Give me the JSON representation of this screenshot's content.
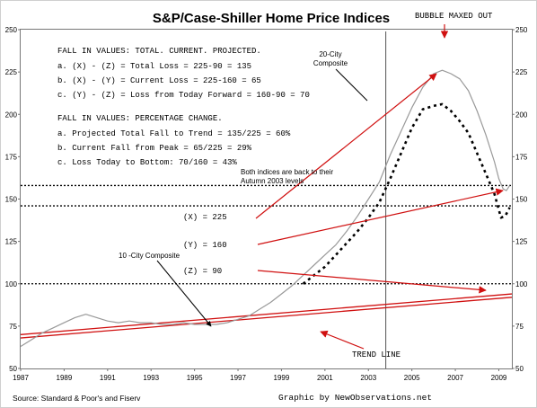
{
  "chart_data": {
    "type": "line",
    "title": "S&P/Case-Shiller Home Price Indices",
    "source": "Source: Standard & Poor's and Fiserv",
    "credit": "Graphic by NewObservations.net",
    "xlim": [
      1987,
      2009.6
    ],
    "ylim": [
      50,
      250
    ],
    "x_ticks": [
      "1987",
      "1989",
      "1991",
      "1993",
      "1995",
      "1997",
      "1999",
      "2001",
      "2003",
      "2005",
      "2007",
      "2009"
    ],
    "y_ticks": [
      "50",
      "75",
      "100",
      "125",
      "150",
      "175",
      "200",
      "225",
      "250"
    ],
    "series": [
      {
        "name": "10-City Composite",
        "style": "solid",
        "color": "#999999",
        "points": [
          [
            1987.0,
            63
          ],
          [
            1987.5,
            67
          ],
          [
            1988.0,
            71
          ],
          [
            1988.5,
            74
          ],
          [
            1989.0,
            77
          ],
          [
            1989.5,
            80
          ],
          [
            1990.0,
            82
          ],
          [
            1990.5,
            80
          ],
          [
            1991.0,
            78
          ],
          [
            1991.5,
            77
          ],
          [
            1992.0,
            78
          ],
          [
            1992.5,
            77
          ],
          [
            1993.0,
            77
          ],
          [
            1993.5,
            76
          ],
          [
            1994.0,
            76
          ],
          [
            1994.5,
            77
          ],
          [
            1995.0,
            76
          ],
          [
            1995.5,
            76
          ],
          [
            1996.0,
            76
          ],
          [
            1996.5,
            77
          ],
          [
            1997.0,
            79
          ],
          [
            1997.5,
            81
          ],
          [
            1998.0,
            85
          ],
          [
            1998.5,
            89
          ],
          [
            1999.0,
            94
          ],
          [
            1999.5,
            99
          ],
          [
            2000.0,
            105
          ],
          [
            2000.5,
            111
          ],
          [
            2001.0,
            117
          ],
          [
            2001.5,
            123
          ],
          [
            2002.0,
            131
          ],
          [
            2002.5,
            140
          ],
          [
            2003.0,
            150
          ],
          [
            2003.5,
            160
          ],
          [
            2004.0,
            176
          ],
          [
            2004.5,
            190
          ],
          [
            2005.0,
            204
          ],
          [
            2005.5,
            216
          ],
          [
            2006.0,
            224
          ],
          [
            2006.4,
            226
          ],
          [
            2006.8,
            224
          ],
          [
            2007.2,
            221
          ],
          [
            2007.6,
            214
          ],
          [
            2008.0,
            202
          ],
          [
            2008.4,
            188
          ],
          [
            2008.8,
            172
          ],
          [
            2009.0,
            162
          ],
          [
            2009.2,
            156
          ],
          [
            2009.35,
            155
          ],
          [
            2009.5,
            158
          ]
        ]
      },
      {
        "name": "20-City Composite",
        "style": "dotted",
        "color": "#000000",
        "points": [
          [
            2000.0,
            100
          ],
          [
            2000.5,
            105
          ],
          [
            2001.0,
            110
          ],
          [
            2001.5,
            117
          ],
          [
            2002.0,
            124
          ],
          [
            2002.5,
            131
          ],
          [
            2003.0,
            139
          ],
          [
            2003.5,
            148
          ],
          [
            2004.0,
            162
          ],
          [
            2004.5,
            177
          ],
          [
            2005.0,
            192
          ],
          [
            2005.5,
            203
          ],
          [
            2006.0,
            205
          ],
          [
            2006.4,
            206
          ],
          [
            2006.8,
            202
          ],
          [
            2007.2,
            196
          ],
          [
            2007.6,
            189
          ],
          [
            2008.0,
            177
          ],
          [
            2008.4,
            165
          ],
          [
            2008.8,
            153
          ],
          [
            2009.1,
            139
          ],
          [
            2009.3,
            140
          ],
          [
            2009.5,
            145
          ]
        ]
      }
    ],
    "trend_lines": [
      {
        "points": [
          [
            1987.0,
            68
          ],
          [
            2009.6,
            92
          ]
        ]
      },
      {
        "points": [
          [
            1987.0,
            70
          ],
          [
            2009.6,
            94
          ]
        ]
      }
    ],
    "reference_lines": [
      {
        "axis": "y",
        "value": 158,
        "style": "dotted"
      },
      {
        "axis": "y",
        "value": 146,
        "style": "dotted"
      },
      {
        "axis": "y",
        "value": 100,
        "style": "dotted"
      },
      {
        "axis": "x",
        "value": 2003.8,
        "style": "solid"
      }
    ],
    "annotations": {
      "bubble": "BUBBLE MAXED OUT",
      "fall_header_1": "FALL IN VALUES: TOTAL. CURRENT. PROJECTED.",
      "fall_a": "a. (X) - (Z) = Total Loss = 225-90 = 135",
      "fall_b": "b. (X) - (Y) = Current Loss = 225-160 = 65",
      "fall_c": "c. (Y) - (Z) = Loss from Today Forward = 160-90 = 70",
      "fall_header_2": "FALL IN VALUES: PERCENTAGE CHANGE.",
      "pct_a": "a. Projected Total Fall to Trend = 135/225 = 60%",
      "pct_b": "b. Current Fall from Peak = 65/225 = 29%",
      "pct_c": "c. Loss Today to Bottom: 70/160 = 43%",
      "back_line1": "Both indices are back to their",
      "back_line2": "Autumn 2003 levels",
      "label_20city_1": "20-City",
      "label_20city_2": "Composite",
      "label_10city": "10 -City Composite",
      "label_x": "(X) = 225",
      "label_y": "(Y) = 160",
      "label_z": "(Z) =  90",
      "trend_line": "TREND LINE"
    }
  }
}
